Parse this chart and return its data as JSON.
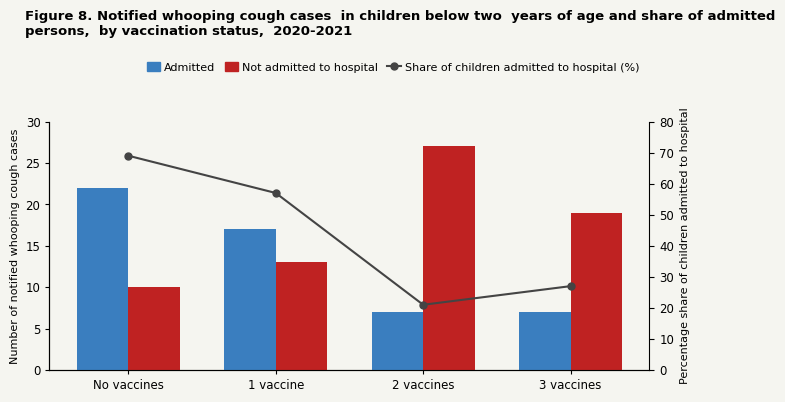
{
  "title_line1": "Figure 8. Notified whooping cough cases  in children below two  years of age and share of admitted",
  "title_line2": "persons,  by vaccination status,  2020-2021",
  "categories": [
    "No vaccines",
    "1 vaccine",
    "2 vaccines",
    "3 vaccines"
  ],
  "admitted": [
    22,
    17,
    7,
    7
  ],
  "not_admitted": [
    10,
    13,
    27,
    19
  ],
  "share_pct": [
    69,
    57,
    21,
    27
  ],
  "bar_color_admitted": "#3a7ebf",
  "bar_color_not_admitted": "#bf2222",
  "line_color": "#444444",
  "ylabel_left": "Number of notified whooping cough cases",
  "ylabel_right": "Percentage share of children admitted to hospital",
  "ylim_left": [
    0,
    30
  ],
  "ylim_right": [
    0,
    80
  ],
  "yticks_left": [
    0,
    5,
    10,
    15,
    20,
    25,
    30
  ],
  "yticks_right": [
    0,
    10,
    20,
    30,
    40,
    50,
    60,
    70,
    80
  ],
  "legend_admitted": "Admitted",
  "legend_not_admitted": "Not admitted to hospital",
  "legend_share": "Share of children admitted to hospital (%)",
  "title_fontsize": 9.5,
  "axis_fontsize": 8,
  "tick_fontsize": 8.5,
  "bar_width": 0.35,
  "bg_color": "#f5f5f0"
}
